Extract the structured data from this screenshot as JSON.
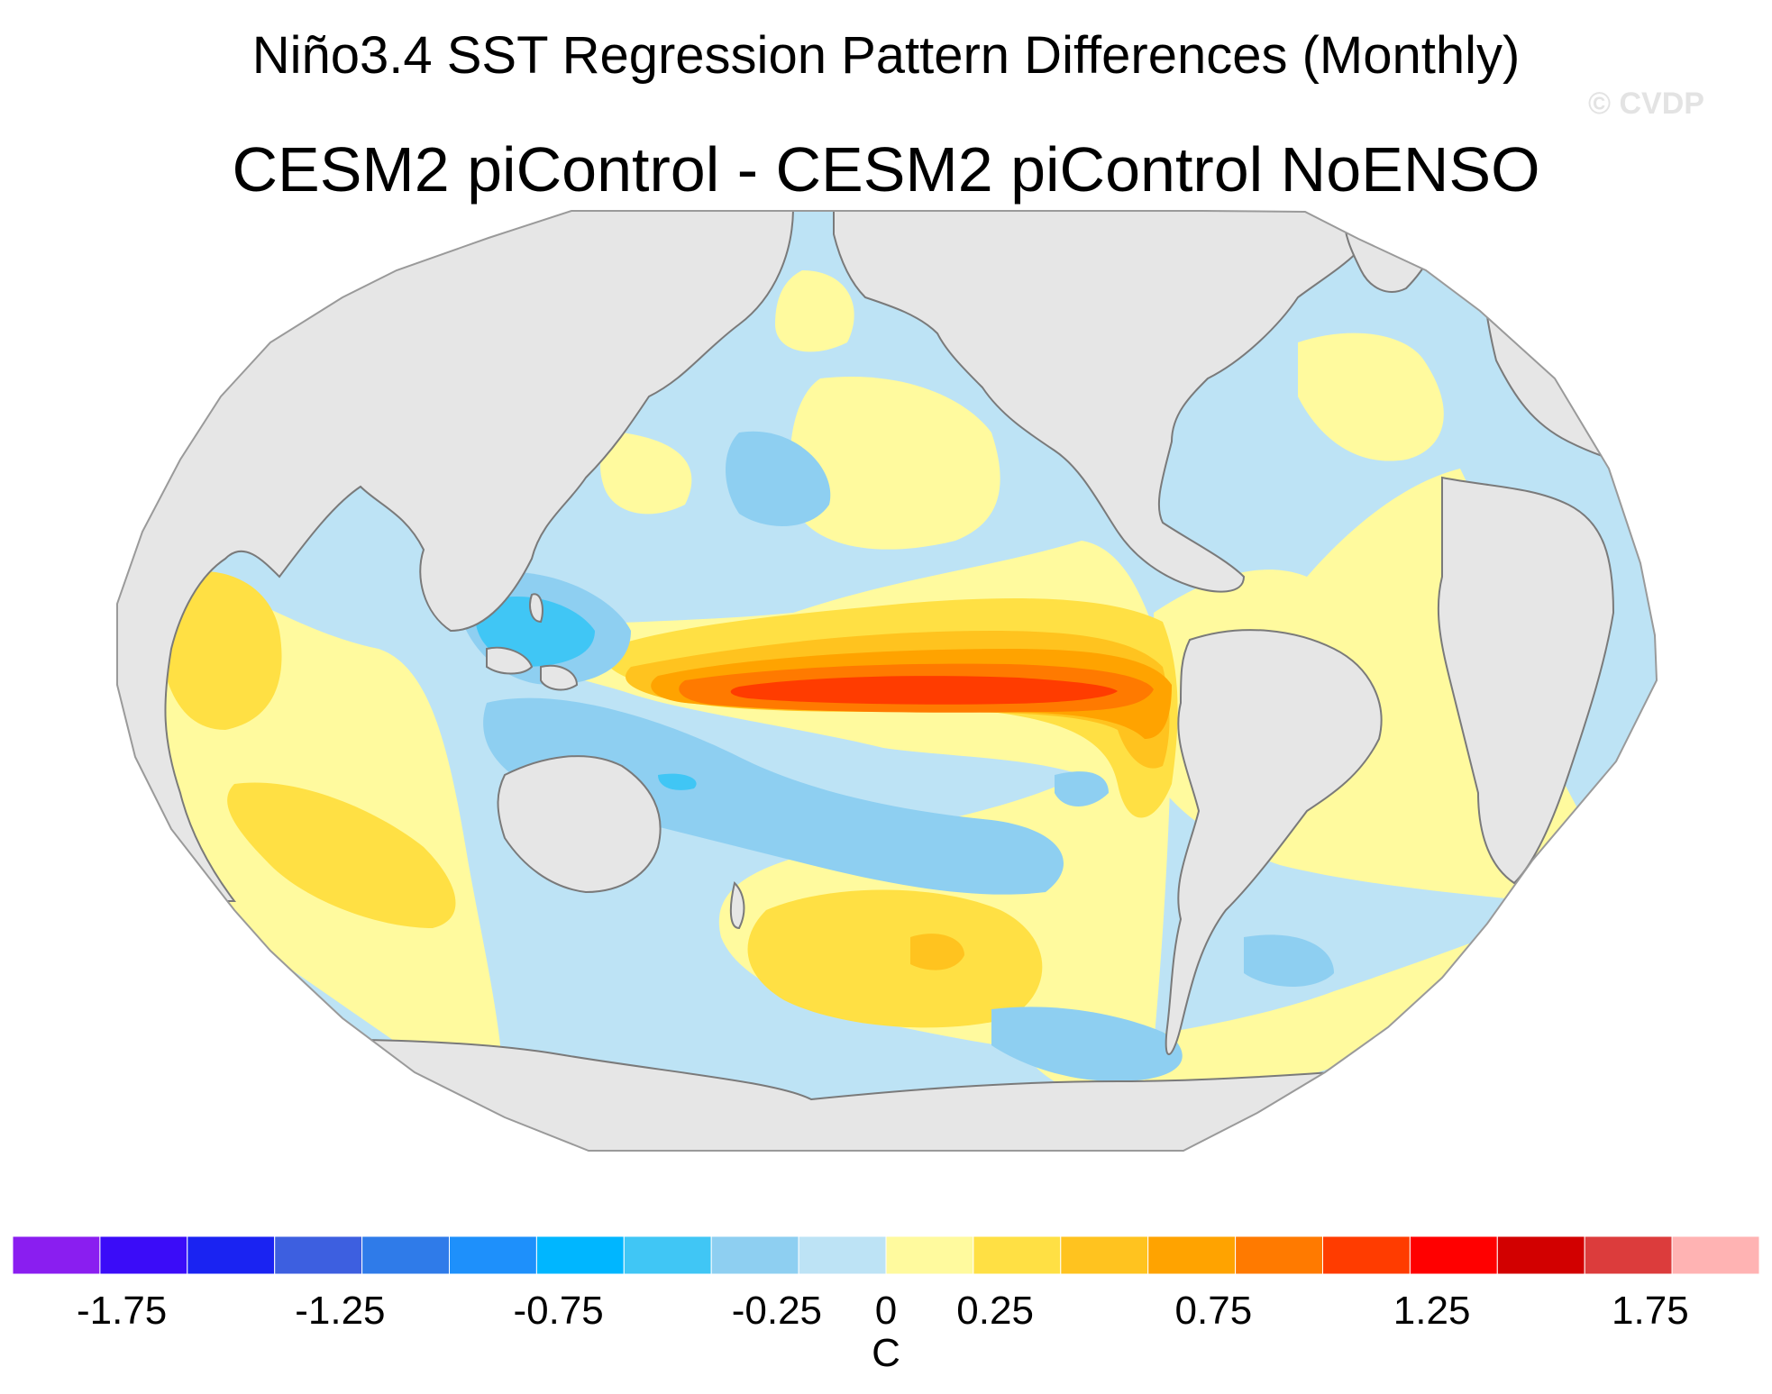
{
  "title": "Niño3.4 SST Regression Pattern Differences (Monthly)",
  "subtitle": "CESM2 piControl - CESM2 piControl NoENSO",
  "watermark": "© CVDP",
  "colorbar": {
    "units": "C",
    "min": -2.0,
    "max": 2.0,
    "step": 0.25,
    "colors": [
      "#8a1ef0",
      "#3b0cf8",
      "#1a23f2",
      "#3d5fe0",
      "#2f7be9",
      "#1e90fb",
      "#00b6ff",
      "#40c6f5",
      "#8ecff1",
      "#bde3f5",
      "#fffa9e",
      "#ffe044",
      "#ffc31f",
      "#ffa300",
      "#ff7a00",
      "#ff3c00",
      "#ff0000",
      "#d20000",
      "#dc3c3c",
      "#ffb3b3"
    ],
    "tick_labels": [
      "-1.75",
      "-1.25",
      "-0.75",
      "-0.25",
      "0",
      "0.25",
      "0.75",
      "1.25",
      "1.75"
    ],
    "tick_values": [
      -1.75,
      -1.25,
      -0.75,
      -0.25,
      0,
      0.25,
      0.75,
      1.25,
      1.75
    ]
  },
  "chart_data": {
    "type": "heatmap",
    "title": "Niño3.4 SST Regression Pattern Differences (Monthly)",
    "subtitle": "CESM2 piControl - CESM2 piControl NoENSO",
    "projection": "Robinson, Pacific-centered",
    "variable": "SST regression difference",
    "units": "C",
    "features": [
      {
        "region": "Eastern equatorial Pacific core",
        "value_range": [
          1.25,
          1.5
        ]
      },
      {
        "region": "Central-eastern equatorial Pacific tongue",
        "value_range": [
          0.75,
          1.25
        ]
      },
      {
        "region": "South American coast (Peru)",
        "value_range": [
          0.5,
          1.0
        ]
      },
      {
        "region": "Western Pacific warm pool",
        "value_range": [
          -0.75,
          -0.25
        ]
      },
      {
        "region": "Southwest Pacific",
        "value_range": [
          -0.5,
          -0.25
        ]
      },
      {
        "region": "South Pacific (~40S, 150W)",
        "value_range": [
          0.25,
          0.5
        ]
      },
      {
        "region": "Indian Ocean",
        "value_range": [
          0.0,
          0.5
        ]
      },
      {
        "region": "North Pacific (central)",
        "value_range": [
          -0.5,
          -0.25
        ]
      },
      {
        "region": "Atlantic",
        "value_range": [
          -0.25,
          0.25
        ]
      },
      {
        "region": "Southern Ocean (Pacific/Atlantic sector)",
        "value_range": [
          -0.5,
          -0.25
        ]
      }
    ]
  }
}
